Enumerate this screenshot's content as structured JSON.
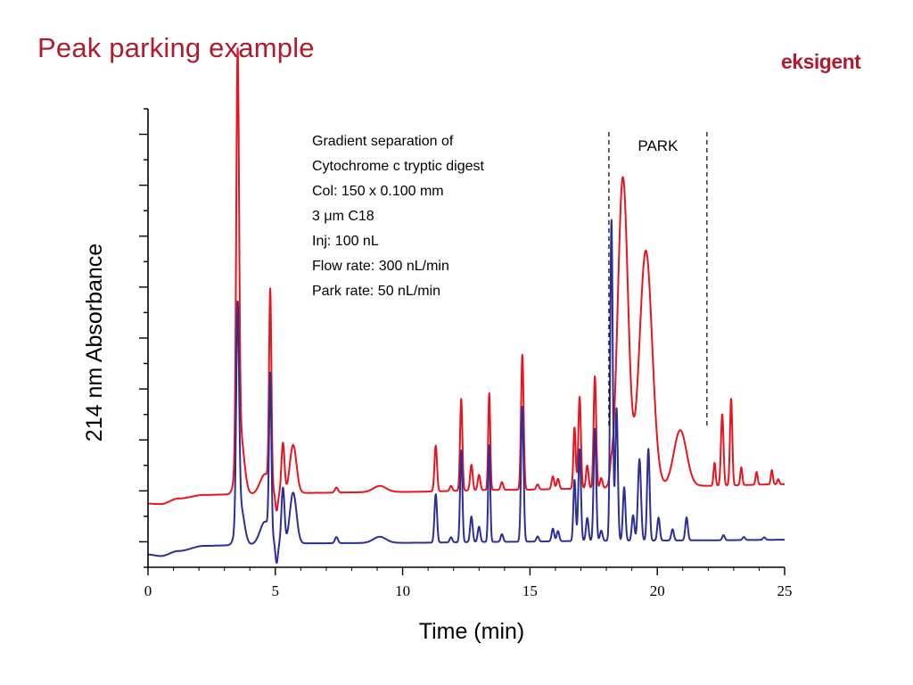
{
  "slide": {
    "title": "Peak parking example",
    "logo_text": "eksigent"
  },
  "chart_data": {
    "type": "line",
    "title": "",
    "xlabel": "Time (min)",
    "ylabel": "214 nm Absorbance",
    "xlim": [
      0,
      25
    ],
    "x_ticks": [
      "0",
      "5",
      "10",
      "15",
      "20",
      "25"
    ],
    "y_tick_count": 18,
    "y_ticks_labeled": false,
    "grid": false,
    "legend": "none",
    "park_window": {
      "label": "PARK",
      "start": 18.1,
      "end": 21.95
    },
    "annotation": [
      "Gradient separation of",
      "Cytochrome c tryptic digest",
      "Col: 150 x 0.100 mm",
      "3 μm C18",
      "Inj: 100 nL",
      "Flow rate: 300 nL/min",
      "Park rate: 50 nL/min"
    ],
    "series": [
      {
        "color": "#e8141e",
        "baseline": [
          [
            0,
            1.25
          ],
          [
            0.5,
            1.24
          ],
          [
            1.2,
            1.35
          ],
          [
            2.2,
            1.42
          ],
          [
            3.2,
            1.43
          ],
          [
            5,
            1.43
          ],
          [
            6,
            1.46
          ],
          [
            10,
            1.48
          ],
          [
            14,
            1.52
          ],
          [
            18,
            1.55
          ],
          [
            22,
            1.6
          ],
          [
            25,
            1.63
          ]
        ],
        "peaks": [
          [
            3.52,
            7.8,
            0.055
          ],
          [
            3.62,
            1.2,
            0.15
          ],
          [
            4.8,
            3.8,
            0.045
          ],
          [
            4.6,
            0.4,
            0.2
          ],
          [
            5.05,
            -0.35,
            0.05
          ],
          [
            5.3,
            1.0,
            0.06
          ],
          [
            5.7,
            0.95,
            0.13
          ],
          [
            7.4,
            0.1,
            0.06
          ],
          [
            9.1,
            0.12,
            0.25
          ],
          [
            11.3,
            0.9,
            0.05
          ],
          [
            11.9,
            0.1,
            0.05
          ],
          [
            12.3,
            1.8,
            0.045
          ],
          [
            12.7,
            0.5,
            0.05
          ],
          [
            13.0,
            0.3,
            0.05
          ],
          [
            13.4,
            1.9,
            0.04
          ],
          [
            13.9,
            0.15,
            0.05
          ],
          [
            14.7,
            2.65,
            0.05
          ],
          [
            15.3,
            0.1,
            0.05
          ],
          [
            15.9,
            0.25,
            0.05
          ],
          [
            16.1,
            0.2,
            0.05
          ],
          [
            16.75,
            1.2,
            0.045
          ],
          [
            16.95,
            1.8,
            0.05
          ],
          [
            17.25,
            0.45,
            0.05
          ],
          [
            17.55,
            2.2,
            0.05
          ],
          [
            17.8,
            0.2,
            0.05
          ],
          [
            18.18,
            0.2,
            0.05
          ],
          [
            18.65,
            6.1,
            0.2
          ],
          [
            19.55,
            4.65,
            0.25
          ],
          [
            20.9,
            1.1,
            0.25
          ],
          [
            22.25,
            0.45,
            0.04
          ],
          [
            22.55,
            1.4,
            0.05
          ],
          [
            22.9,
            1.7,
            0.045
          ],
          [
            23.3,
            0.35,
            0.04
          ],
          [
            23.9,
            0.25,
            0.04
          ],
          [
            24.5,
            0.28,
            0.04
          ],
          [
            24.75,
            0.1,
            0.04
          ]
        ]
      },
      {
        "color": "#2b2f96",
        "baseline": [
          [
            0,
            0.25
          ],
          [
            0.5,
            0.22
          ],
          [
            1.2,
            0.32
          ],
          [
            2.2,
            0.42
          ],
          [
            3.2,
            0.43
          ],
          [
            5,
            0.45
          ],
          [
            6,
            0.47
          ],
          [
            10,
            0.48
          ],
          [
            14,
            0.5
          ],
          [
            18,
            0.52
          ],
          [
            22,
            0.53
          ],
          [
            25,
            0.54
          ]
        ],
        "peaks": [
          [
            3.52,
            4.15,
            0.055
          ],
          [
            3.62,
            0.8,
            0.15
          ],
          [
            4.8,
            3.1,
            0.045
          ],
          [
            4.6,
            0.45,
            0.2
          ],
          [
            5.05,
            -0.4,
            0.05
          ],
          [
            5.3,
            1.1,
            0.06
          ],
          [
            5.7,
            1.0,
            0.13
          ],
          [
            7.4,
            0.12,
            0.06
          ],
          [
            9.1,
            0.12,
            0.25
          ],
          [
            11.3,
            0.95,
            0.05
          ],
          [
            11.9,
            0.1,
            0.05
          ],
          [
            12.3,
            1.8,
            0.045
          ],
          [
            12.7,
            0.5,
            0.05
          ],
          [
            13.0,
            0.3,
            0.05
          ],
          [
            13.4,
            1.9,
            0.04
          ],
          [
            13.9,
            0.15,
            0.05
          ],
          [
            14.7,
            2.65,
            0.05
          ],
          [
            15.3,
            0.1,
            0.05
          ],
          [
            15.9,
            0.25,
            0.05
          ],
          [
            16.1,
            0.2,
            0.05
          ],
          [
            16.75,
            1.2,
            0.045
          ],
          [
            16.95,
            1.8,
            0.05
          ],
          [
            17.25,
            0.45,
            0.05
          ],
          [
            17.55,
            2.2,
            0.05
          ],
          [
            17.8,
            0.2,
            0.05
          ],
          [
            18.2,
            6.3,
            0.05
          ],
          [
            18.4,
            2.6,
            0.05
          ],
          [
            18.7,
            1.05,
            0.05
          ],
          [
            19.05,
            0.5,
            0.05
          ],
          [
            19.3,
            1.6,
            0.06
          ],
          [
            19.65,
            1.8,
            0.05
          ],
          [
            20.05,
            0.45,
            0.05
          ],
          [
            20.6,
            0.22,
            0.05
          ],
          [
            21.15,
            0.45,
            0.05
          ],
          [
            22.6,
            0.1,
            0.05
          ],
          [
            23.4,
            0.06,
            0.05
          ],
          [
            24.2,
            0.05,
            0.05
          ]
        ]
      }
    ]
  }
}
